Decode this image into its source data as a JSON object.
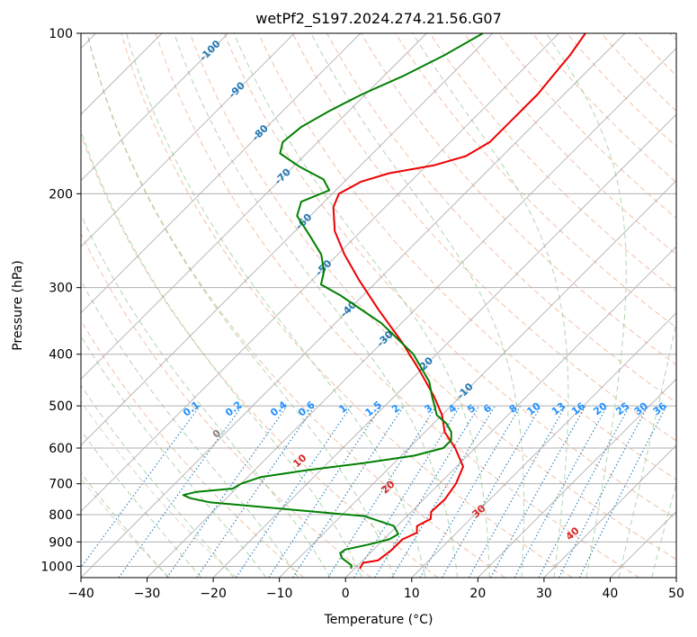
{
  "chart_data": {
    "type": "line",
    "title": "wetPf2_S197.2024.274.21.56.G07",
    "xlabel": "Temperature (°C)",
    "ylabel": "Pressure (hPa)",
    "xlim": [
      -40,
      50
    ],
    "ylim": [
      1050,
      100
    ],
    "y_scale": "log",
    "skew": true,
    "x_ticks": [
      "−40",
      "−30",
      "−20",
      "−10",
      "0",
      "10",
      "20",
      "30",
      "40",
      "50"
    ],
    "x_tick_values": [
      -40,
      -30,
      -20,
      -10,
      0,
      10,
      20,
      30,
      40,
      50
    ],
    "y_ticks": [
      "1000",
      "900",
      "800",
      "700",
      "600",
      "500",
      "400",
      "300",
      "200",
      "100"
    ],
    "y_tick_values": [
      1000,
      900,
      800,
      700,
      600,
      500,
      400,
      300,
      200,
      100
    ],
    "grid": true,
    "colors": {
      "temperature": "#ee0000",
      "dewpoint": "#008000",
      "dry_adiabat": "#e8a07a",
      "moist_adiabat": "#8fc48f",
      "mixing_ratio": "#1f77b4",
      "mixing_ratio_label": "#1e90ff",
      "skew_isotherm": "#808080",
      "isotherm_label": "#1f77b4",
      "theta_label": "#d62728"
    },
    "mixing_ratio_labels": [
      "0.1",
      "0.2",
      "0.4",
      "0.6",
      "1",
      "1.5",
      "2",
      "3",
      "4",
      "5",
      "6",
      "8",
      "10",
      "13",
      "16",
      "20",
      "25",
      "30",
      "36"
    ],
    "mixing_ratio_values": [
      0.1,
      0.2,
      0.4,
      0.6,
      1,
      1.5,
      2,
      3,
      4,
      5,
      6,
      8,
      10,
      13,
      16,
      20,
      25,
      30,
      36
    ],
    "isotherm_labels": [
      {
        "text": "-100",
        "t": -100
      },
      {
        "text": "-90",
        "t": -90
      },
      {
        "text": "-80",
        "t": -80
      },
      {
        "text": "-70",
        "t": -70
      },
      {
        "text": "-60",
        "t": -60
      },
      {
        "text": "-50",
        "t": -50
      },
      {
        "text": "-40",
        "t": -40
      },
      {
        "text": "-30",
        "t": -30
      },
      {
        "text": "-20",
        "t": -20
      },
      {
        "text": "-10",
        "t": -10
      }
    ],
    "theta_labels": [
      {
        "text": "0",
        "t": 0
      },
      {
        "text": "10",
        "t": 10
      },
      {
        "text": "20",
        "t": 20
      },
      {
        "text": "30",
        "t": 30
      },
      {
        "text": "40",
        "t": 40
      }
    ],
    "series": [
      {
        "name": "",
        "key": "temperature",
        "points": [
          {
            "p": 1010,
            "t": 0.8
          },
          {
            "p": 985,
            "t": 0.4
          },
          {
            "p": 975,
            "t": 2.3
          },
          {
            "p": 930,
            "t": 2.8
          },
          {
            "p": 890,
            "t": 2.8
          },
          {
            "p": 865,
            "t": 4.0
          },
          {
            "p": 840,
            "t": 3.0
          },
          {
            "p": 815,
            "t": 4.0
          },
          {
            "p": 790,
            "t": 3.0
          },
          {
            "p": 750,
            "t": 3.2
          },
          {
            "p": 700,
            "t": 2.5
          },
          {
            "p": 650,
            "t": 1.0
          },
          {
            "p": 600,
            "t": -3.0
          },
          {
            "p": 560,
            "t": -7.0
          },
          {
            "p": 520,
            "t": -10.0
          },
          {
            "p": 480,
            "t": -14.0
          },
          {
            "p": 430,
            "t": -20.0
          },
          {
            "p": 380,
            "t": -27.0
          },
          {
            "p": 330,
            "t": -35.5
          },
          {
            "p": 290,
            "t": -43.0
          },
          {
            "p": 260,
            "t": -49.0
          },
          {
            "p": 235,
            "t": -54.0
          },
          {
            "p": 212,
            "t": -57.8
          },
          {
            "p": 200,
            "t": -59.0
          },
          {
            "p": 190,
            "t": -57.5
          },
          {
            "p": 183,
            "t": -54.5
          },
          {
            "p": 177,
            "t": -49.0
          },
          {
            "p": 170,
            "t": -45.5
          },
          {
            "p": 160,
            "t": -44.0
          },
          {
            "p": 145,
            "t": -44.0
          },
          {
            "p": 130,
            "t": -44.0
          },
          {
            "p": 120,
            "t": -44.5
          },
          {
            "p": 110,
            "t": -45.0
          },
          {
            "p": 100,
            "t": -46.0
          }
        ]
      },
      {
        "name": "",
        "key": "dewpoint",
        "points": [
          {
            "p": 1010,
            "t": -0.5
          },
          {
            "p": 995,
            "t": -1.0
          },
          {
            "p": 965,
            "t": -3.5
          },
          {
            "p": 945,
            "t": -4.5
          },
          {
            "p": 930,
            "t": -4.3
          },
          {
            "p": 910,
            "t": -1.5
          },
          {
            "p": 890,
            "t": 0.8
          },
          {
            "p": 870,
            "t": 1.4
          },
          {
            "p": 840,
            "t": -0.5
          },
          {
            "p": 805,
            "t": -6.5
          },
          {
            "p": 780,
            "t": -20.0
          },
          {
            "p": 758,
            "t": -32.0
          },
          {
            "p": 745,
            "t": -35.5
          },
          {
            "p": 735,
            "t": -37.0
          },
          {
            "p": 725,
            "t": -35.5
          },
          {
            "p": 715,
            "t": -30.5
          },
          {
            "p": 700,
            "t": -30.0
          },
          {
            "p": 680,
            "t": -28.0
          },
          {
            "p": 660,
            "t": -22.0
          },
          {
            "p": 640,
            "t": -14.5
          },
          {
            "p": 620,
            "t": -8.0
          },
          {
            "p": 600,
            "t": -4.8
          },
          {
            "p": 580,
            "t": -4.8
          },
          {
            "p": 560,
            "t": -6.0
          },
          {
            "p": 540,
            "t": -8.0
          },
          {
            "p": 520,
            "t": -10.8
          },
          {
            "p": 500,
            "t": -12.5
          },
          {
            "p": 480,
            "t": -14.3
          },
          {
            "p": 450,
            "t": -17.0
          },
          {
            "p": 400,
            "t": -23.5
          },
          {
            "p": 350,
            "t": -33.0
          },
          {
            "p": 310,
            "t": -43.5
          },
          {
            "p": 296,
            "t": -48.0
          },
          {
            "p": 280,
            "t": -49.5
          },
          {
            "p": 260,
            "t": -52.5
          },
          {
            "p": 240,
            "t": -57.0
          },
          {
            "p": 220,
            "t": -62.0
          },
          {
            "p": 207,
            "t": -63.5
          },
          {
            "p": 197,
            "t": -61.0
          },
          {
            "p": 188,
            "t": -63.5
          },
          {
            "p": 178,
            "t": -69.0
          },
          {
            "p": 168,
            "t": -74.0
          },
          {
            "p": 160,
            "t": -75.3
          },
          {
            "p": 150,
            "t": -74.8
          },
          {
            "p": 140,
            "t": -73.0
          },
          {
            "p": 130,
            "t": -70.5
          },
          {
            "p": 120,
            "t": -67.0
          },
          {
            "p": 110,
            "t": -64.0
          },
          {
            "p": 100,
            "t": -61.5
          }
        ]
      }
    ]
  }
}
